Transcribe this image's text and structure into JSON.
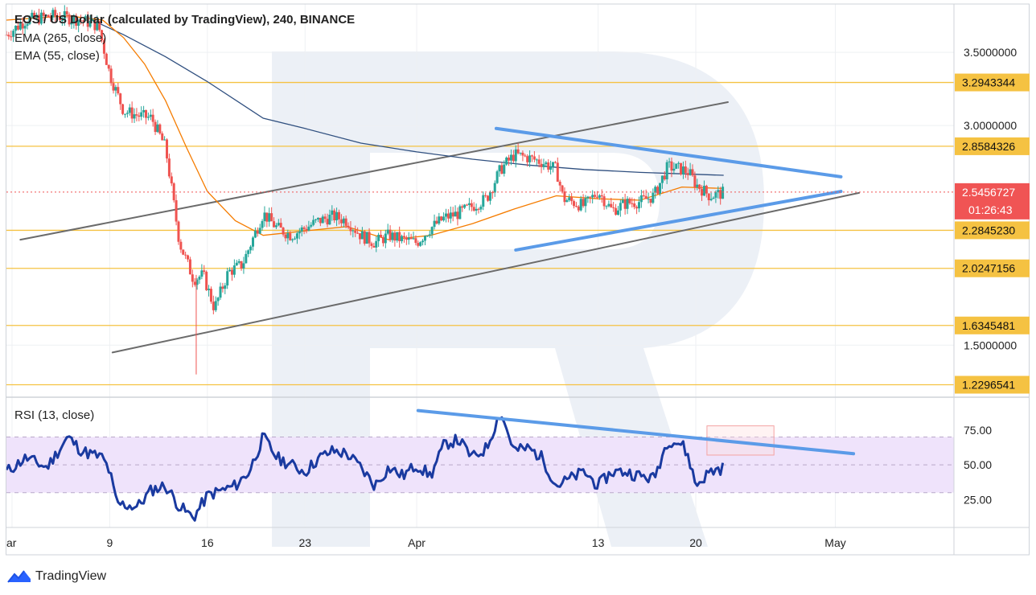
{
  "header": {
    "title": "EOS / US Dollar (calculated by TradingView), 240, BINANCE",
    "ema1": "EMA (265, close)",
    "ema2": "EMA (55, close)"
  },
  "rsi_panel": {
    "label": "RSI (13, close)"
  },
  "brand": {
    "name": "TradingView",
    "icon": "tradingview-logo-icon"
  },
  "colors": {
    "candle_up": "#26a69a",
    "candle_down": "#ef5350",
    "ema265": "#2f4f7f",
    "ema55": "#f57c00",
    "trend_blue": "#5b9be8",
    "channel_gray": "#6b6b6b",
    "level_line": "#f5c242",
    "level_label_bg": "#f5c242",
    "price_label_bg": "#f05454",
    "rsi_line": "#1a3aa0",
    "rsi_band": "#efe3fb",
    "watermark": "#c9d3e4"
  },
  "chart_data": [
    {
      "type": "candlestick",
      "title": "EOS / US Dollar (calculated by TradingView), 240, BINANCE",
      "ylim": [
        1.15,
        3.83
      ],
      "price_axis_ticks": [
        3.5,
        3.0,
        1.5
      ],
      "price_axis_labels": [
        "3.5000000",
        "3.0000000",
        "1.5000000"
      ],
      "horizontal_levels": [
        3.2943344,
        2.8584326,
        2.284523,
        2.0247156,
        1.6345481,
        1.2296541
      ],
      "horizontal_level_labels": [
        "3.2943344",
        "2.8584326",
        "2.2845230",
        "2.0247156",
        "1.6345481",
        "1.2296541"
      ],
      "current_price": 2.5456727,
      "current_price_label": "2.5456727",
      "countdown": "01:26:43",
      "x_axis": {
        "labels": [
          "ar",
          "9",
          "16",
          "23",
          "Apr",
          "13",
          "20",
          "May"
        ],
        "days": [
          2,
          9,
          16,
          23,
          31,
          44,
          51,
          61
        ]
      },
      "x_range_days": [
        1.6,
        69.5
      ],
      "price_path": [
        [
          1.6,
          3.62
        ],
        [
          3,
          3.72
        ],
        [
          5,
          3.75
        ],
        [
          7,
          3.72
        ],
        [
          8.2,
          3.68
        ],
        [
          9,
          3.35
        ],
        [
          10,
          3.1
        ],
        [
          11,
          3.07
        ],
        [
          12,
          3.05
        ],
        [
          13,
          2.85
        ],
        [
          14,
          2.2
        ],
        [
          15,
          1.95
        ],
        [
          15.7,
          1.98
        ],
        [
          16.5,
          1.75
        ],
        [
          17.5,
          2.0
        ],
        [
          18.5,
          2.05
        ],
        [
          20,
          2.4
        ],
        [
          21,
          2.3
        ],
        [
          22,
          2.25
        ],
        [
          23,
          2.3
        ],
        [
          24,
          2.35
        ],
        [
          25,
          2.38
        ],
        [
          26,
          2.35
        ],
        [
          27,
          2.25
        ],
        [
          28,
          2.2
        ],
        [
          29,
          2.25
        ],
        [
          30,
          2.22
        ],
        [
          31,
          2.2
        ],
        [
          32,
          2.3
        ],
        [
          33,
          2.37
        ],
        [
          34,
          2.4
        ],
        [
          35,
          2.45
        ],
        [
          36,
          2.5
        ],
        [
          37,
          2.7
        ],
        [
          38,
          2.8
        ],
        [
          39,
          2.78
        ],
        [
          40,
          2.75
        ],
        [
          41,
          2.7
        ],
        [
          41.5,
          2.5
        ],
        [
          43,
          2.45
        ],
        [
          44,
          2.55
        ],
        [
          45,
          2.42
        ],
        [
          46,
          2.47
        ],
        [
          47,
          2.48
        ],
        [
          48,
          2.52
        ],
        [
          49,
          2.72
        ],
        [
          50,
          2.7
        ],
        [
          50.5,
          2.68
        ],
        [
          51,
          2.6
        ],
        [
          52,
          2.52
        ],
        [
          53,
          2.54
        ]
      ],
      "series": [
        {
          "name": "EMA (265, close)",
          "x": [
            8.2,
            10,
            13,
            16,
            20,
            23,
            27,
            31,
            35,
            39,
            43,
            47,
            50,
            53
          ],
          "y": [
            3.7,
            3.62,
            3.47,
            3.3,
            3.05,
            2.98,
            2.88,
            2.82,
            2.77,
            2.73,
            2.7,
            2.68,
            2.67,
            2.66
          ]
        },
        {
          "name": "EMA (55, close)",
          "x": [
            1.6,
            6,
            8.5,
            10,
            11.5,
            13,
            14.5,
            16,
            18,
            20,
            23,
            26,
            29,
            32,
            35,
            38,
            41,
            44,
            47,
            50,
            53
          ],
          "y": [
            3.72,
            3.75,
            3.72,
            3.6,
            3.42,
            3.17,
            2.85,
            2.55,
            2.35,
            2.25,
            2.28,
            2.31,
            2.22,
            2.25,
            2.33,
            2.43,
            2.52,
            2.5,
            2.49,
            2.58,
            2.57
          ]
        }
      ],
      "trend_lines": [
        {
          "color": "gray",
          "from": [
            2.6,
            2.22
          ],
          "to": [
            53.3,
            3.16
          ]
        },
        {
          "color": "gray",
          "from": [
            9.2,
            1.45
          ],
          "to": [
            62.7,
            2.54
          ]
        },
        {
          "color": "blue",
          "from": [
            36.7,
            2.98
          ],
          "to": [
            61.4,
            2.65
          ]
        },
        {
          "color": "blue",
          "from": [
            38.1,
            2.15
          ],
          "to": [
            61.4,
            2.55
          ]
        }
      ]
    },
    {
      "type": "line",
      "title": "RSI (13, close)",
      "ylim": [
        5,
        98
      ],
      "y_ticks": [
        75,
        50,
        25
      ],
      "y_tick_labels": [
        "75.00",
        "50.00",
        "25.00"
      ],
      "band": [
        30,
        70
      ],
      "rsi_path": [
        [
          1.6,
          45
        ],
        [
          3,
          55
        ],
        [
          4.5,
          48
        ],
        [
          6,
          70
        ],
        [
          7,
          60
        ],
        [
          8.5,
          55
        ],
        [
          9,
          45
        ],
        [
          9.5,
          22
        ],
        [
          11,
          20
        ],
        [
          12,
          32
        ],
        [
          13,
          35
        ],
        [
          14,
          20
        ],
        [
          15,
          12
        ],
        [
          16,
          28
        ],
        [
          18,
          35
        ],
        [
          19,
          45
        ],
        [
          20,
          70
        ],
        [
          21,
          55
        ],
        [
          22,
          50
        ],
        [
          23,
          45
        ],
        [
          24,
          55
        ],
        [
          25,
          60
        ],
        [
          26,
          58
        ],
        [
          27,
          48
        ],
        [
          28,
          35
        ],
        [
          29,
          48
        ],
        [
          30,
          42
        ],
        [
          31,
          50
        ],
        [
          32,
          42
        ],
        [
          33,
          65
        ],
        [
          34,
          68
        ],
        [
          35,
          55
        ],
        [
          36,
          62
        ],
        [
          37,
          88
        ],
        [
          38,
          60
        ],
        [
          39,
          62
        ],
        [
          40,
          55
        ],
        [
          41,
          35
        ],
        [
          42,
          40
        ],
        [
          43,
          45
        ],
        [
          44,
          35
        ],
        [
          45,
          45
        ],
        [
          46,
          45
        ],
        [
          47,
          42
        ],
        [
          48,
          40
        ],
        [
          49,
          68
        ],
        [
          50,
          65
        ],
        [
          50.5,
          55
        ],
        [
          51,
          35
        ],
        [
          52,
          45
        ],
        [
          53,
          48
        ]
      ],
      "trend_line": {
        "color": "blue",
        "from": [
          31.1,
          89
        ],
        "to": [
          62.3,
          58
        ]
      },
      "marker_box": {
        "from": [
          51.8,
          78
        ],
        "to": [
          56.6,
          57
        ]
      }
    }
  ]
}
